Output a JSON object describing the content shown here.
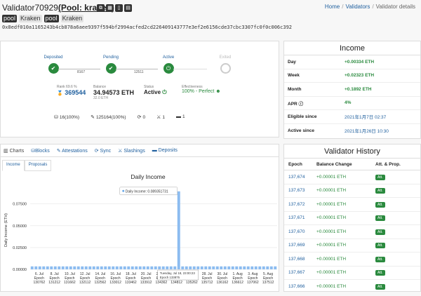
{
  "header": {
    "validator_name": "Validator70929",
    "pool_label": "(Pool: kraken)",
    "buttons": [
      "copy-icon",
      "qr-icon",
      "bookmark-icon",
      "table-icon"
    ],
    "tags": [
      {
        "text": "pool",
        "style": "dark"
      },
      {
        "text": "Kraken",
        "style": "light"
      },
      {
        "text": "pool",
        "style": "dark"
      },
      {
        "text": "Kraken",
        "style": "light"
      }
    ],
    "pubkey": "0x8edf010a1165243b4cb878a6aee9397f594bf2994acfed2cd226409143777e3ef2e6156cde37cbc3307fc0f0c006c392",
    "breadcrumb": {
      "home": "Home",
      "validators": "Validators",
      "current": "Validator details"
    }
  },
  "status": {
    "steps": [
      {
        "label": "Deposited",
        "state": "done"
      },
      {
        "label": "Pending",
        "state": "done"
      },
      {
        "label": "Active",
        "state": "active"
      },
      {
        "label": "Exited",
        "state": "future"
      }
    ],
    "epoch_between_1": "8167",
    "epoch_between_2": "12511",
    "rank_label": "Rank 69.6 %",
    "rank_value": "369544",
    "balance_label": "Balance",
    "balance_value": "34.94573 ETH",
    "balance_sub": "32.0 ETH",
    "status_label": "Status",
    "status_value": "Active",
    "effectiveness_label": "Effectiveness",
    "effectiveness_value": "100% - Perfect",
    "counts": [
      {
        "icon": "proposals-icon",
        "text": "16(100%)"
      },
      {
        "icon": "attestations-icon",
        "text": "125164(100%)"
      },
      {
        "icon": "sync-icon",
        "text": "0"
      },
      {
        "icon": "slashing-icon",
        "text": "1"
      },
      {
        "icon": "deposits-icon",
        "text": "1"
      }
    ]
  },
  "income": {
    "title": "Income",
    "rows": [
      {
        "key": "Day",
        "value": "+0.00334 ETH",
        "style": "green"
      },
      {
        "key": "Week",
        "value": "+0.02323 ETH",
        "style": "green"
      },
      {
        "key": "Month",
        "value": "+0.1892 ETH",
        "style": "green"
      },
      {
        "key": "APR",
        "value": "4%",
        "style": "green"
      },
      {
        "key": "Eligible since",
        "value": "2021年1月7日 02:37",
        "style": "plain"
      },
      {
        "key": "Active since",
        "value": "2021年1月26日 10:30",
        "style": "plain"
      }
    ]
  },
  "charts_panel": {
    "tabs": [
      "Charts",
      "Blocks",
      "Attestations",
      "Sync",
      "Slashings",
      "Deposits"
    ],
    "subtabs": [
      "Income",
      "Proposals"
    ]
  },
  "chart_data": {
    "type": "bar",
    "title": "Daily Income",
    "ylabel": "Daily Income (ETH)",
    "ylim": [
      0,
      0.09
    ],
    "yticks": [
      "0.00000",
      "0.02500",
      "0.05000",
      "0.07500"
    ],
    "xticks": [
      {
        "date": "6. Jul",
        "epoch": "Epoch",
        "num": "130762"
      },
      {
        "date": "8. Jul",
        "epoch": "Epoch",
        "num": "131212"
      },
      {
        "date": "10. Jul",
        "epoch": "Epoch",
        "num": "131662"
      },
      {
        "date": "12. Jul",
        "epoch": "Epoch",
        "num": "132112"
      },
      {
        "date": "14. Jul",
        "epoch": "Epoch",
        "num": "132562"
      },
      {
        "date": "16. Jul",
        "epoch": "Epoch",
        "num": "133012"
      },
      {
        "date": "18. Jul",
        "epoch": "Epoch",
        "num": "133462"
      },
      {
        "date": "20. Jul",
        "epoch": "Epoch",
        "num": "133912"
      },
      {
        "date": "22. Jul",
        "epoch": "Epoch",
        "num": "134362"
      },
      {
        "date": "24. Jul",
        "epoch": "Epoch",
        "num": "134812"
      },
      {
        "date": "26. Jul",
        "epoch": "Epoch",
        "num": "135262"
      },
      {
        "date": "28. Jul",
        "epoch": "Epoch",
        "num": "135712"
      },
      {
        "date": "30. Jul",
        "epoch": "Epoch",
        "num": "136162"
      },
      {
        "date": "1. Aug",
        "epoch": "Epoch",
        "num": "136612"
      },
      {
        "date": "3. Aug",
        "epoch": "Epoch",
        "num": "137062"
      },
      {
        "date": "5. Aug",
        "epoch": "Epoch",
        "num": "137512"
      }
    ],
    "values": [
      0.0034,
      0.0034,
      0.0034,
      0.0034,
      0.0034,
      0.0034,
      0.0034,
      0.0034,
      0.0034,
      0.0034,
      0.0034,
      0.0034,
      0.0034,
      0.0034,
      0.0034,
      0.0034,
      0.0034,
      0.0034,
      0.0034,
      0.0034,
      0.0034,
      0.0034,
      0.0034,
      0.0034,
      0.0034,
      0.0034,
      0.0034,
      0.0034,
      0.0034,
      0.0034,
      0.0034,
      0.0034,
      0.0034,
      0.0034,
      0.0034,
      0.0034,
      0.0034,
      0.0034,
      0.089351731,
      0.0034,
      0.0034,
      0.0034,
      0.0034,
      0.0034,
      0.0034,
      0.0034,
      0.0034,
      0.0034,
      0.0034,
      0.0034,
      0.0034,
      0.0034,
      0.0034,
      0.0034,
      0.0034,
      0.0034,
      0.0034,
      0.0034,
      0.0034,
      0.0034,
      0.0034,
      0.0034,
      0.0034,
      0.0034
    ],
    "tooltip_top": "Daily Income: 0.089351731",
    "tooltip_bottom_1": "Tuesday, Jul 18, 23:00:23",
    "tooltip_bottom_2": "Epoch 133875",
    "highlight_index": 38
  },
  "history": {
    "title": "Validator History",
    "columns": [
      "Epoch",
      "Balance Change",
      "Att. & Prop."
    ],
    "rows": [
      {
        "epoch": "137,674",
        "change": "+0.00001 ETH",
        "badge": "Att."
      },
      {
        "epoch": "137,673",
        "change": "+0.00001 ETH",
        "badge": "Att."
      },
      {
        "epoch": "137,672",
        "change": "+0.00001 ETH",
        "badge": "Att."
      },
      {
        "epoch": "137,671",
        "change": "+0.00001 ETH",
        "badge": "Att."
      },
      {
        "epoch": "137,670",
        "change": "+0.00001 ETH",
        "badge": "Att."
      },
      {
        "epoch": "137,669",
        "change": "+0.00001 ETH",
        "badge": "Att."
      },
      {
        "epoch": "137,668",
        "change": "+0.00001 ETH",
        "badge": "Att."
      },
      {
        "epoch": "137,667",
        "change": "+0.00001 ETH",
        "badge": "Att."
      },
      {
        "epoch": "137,666",
        "change": "+0.00001 ETH",
        "badge": "Att."
      }
    ]
  },
  "colors": {
    "accent": "#1f5f9e",
    "green": "#2a8a3e",
    "bar": "#8cbcf0"
  }
}
